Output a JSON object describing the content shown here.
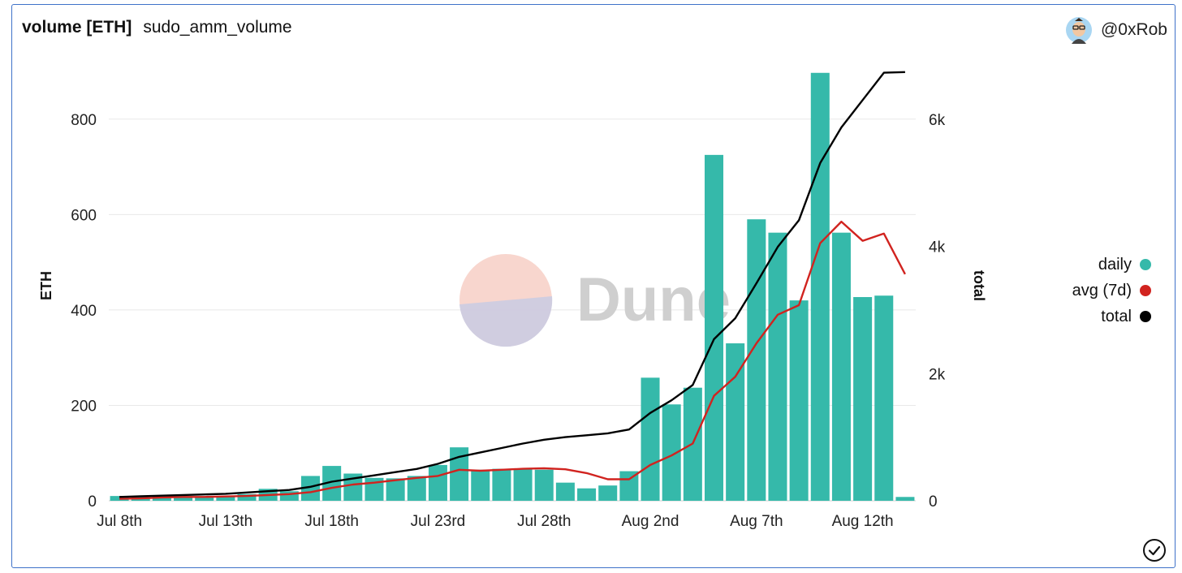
{
  "header": {
    "title": "volume [ETH]",
    "subtitle": "sudo_amm_volume",
    "author": "@0xRob"
  },
  "watermark": "Dune",
  "legend": [
    {
      "label": "daily",
      "color": "#35b9aa"
    },
    {
      "label": "avg (7d)",
      "color": "#d1231f"
    },
    {
      "label": "total",
      "color": "#000000"
    }
  ],
  "icons": {
    "avatar": "avatar-icon",
    "status": "checkmark-circle-icon"
  },
  "chart_data": {
    "type": "bar",
    "title": "volume [ETH]",
    "ylabel": "ETH",
    "y2label": "total",
    "ylim": [
      0,
      900
    ],
    "y2lim": [
      0,
      6750
    ],
    "yticks": [
      0,
      200,
      400,
      600,
      800
    ],
    "yticks_labels": [
      "0",
      "200",
      "400",
      "600",
      "800"
    ],
    "y2ticks": [
      0,
      2000,
      4000,
      6000
    ],
    "y2ticks_labels": [
      "0",
      "2k",
      "4k",
      "6k"
    ],
    "grid": true,
    "legend_position": "right",
    "x": [
      "Jul 8",
      "Jul 9",
      "Jul 10",
      "Jul 11",
      "Jul 12",
      "Jul 13",
      "Jul 14",
      "Jul 15",
      "Jul 16",
      "Jul 17",
      "Jul 18",
      "Jul 19",
      "Jul 20",
      "Jul 21",
      "Jul 22",
      "Jul 23",
      "Jul 24",
      "Jul 25",
      "Jul 26",
      "Jul 27",
      "Jul 28",
      "Jul 29",
      "Jul 30",
      "Jul 31",
      "Aug 1",
      "Aug 2",
      "Aug 3",
      "Aug 4",
      "Aug 5",
      "Aug 6",
      "Aug 7",
      "Aug 8",
      "Aug 9",
      "Aug 10",
      "Aug 11",
      "Aug 12",
      "Aug 13",
      "Aug 14"
    ],
    "xtick_labels": [
      {
        "index": 0,
        "label": "Jul 8th"
      },
      {
        "index": 5,
        "label": "Jul 13th"
      },
      {
        "index": 10,
        "label": "Jul 18th"
      },
      {
        "index": 15,
        "label": "Jul 23rd"
      },
      {
        "index": 20,
        "label": "Jul 28th"
      },
      {
        "index": 25,
        "label": "Aug 2nd"
      },
      {
        "index": 30,
        "label": "Aug 7th"
      },
      {
        "index": 35,
        "label": "Aug 12th"
      }
    ],
    "series": [
      {
        "name": "daily",
        "type": "bar",
        "axis": "left",
        "color": "#35b9aa",
        "values": [
          10,
          8,
          9,
          10,
          8,
          10,
          14,
          25,
          20,
          52,
          73,
          57,
          48,
          47,
          52,
          75,
          112,
          65,
          67,
          67,
          65,
          38,
          26,
          32,
          62,
          258,
          202,
          237,
          725,
          330,
          590,
          562,
          420,
          897,
          562,
          427,
          430,
          8
        ]
      },
      {
        "name": "avg (7d)",
        "type": "line",
        "axis": "left",
        "color": "#d1231f",
        "values": [
          4,
          5,
          7,
          8,
          8,
          9,
          10,
          12,
          14,
          18,
          27,
          34,
          38,
          43,
          48,
          52,
          65,
          63,
          65,
          67,
          68,
          66,
          58,
          45,
          45,
          75,
          95,
          120,
          220,
          260,
          330,
          390,
          410,
          540,
          585,
          545,
          560,
          475
        ]
      },
      {
        "name": "total",
        "type": "line",
        "axis": "right",
        "color": "#000000",
        "values": [
          60,
          70,
          80,
          90,
          100,
          110,
          130,
          150,
          170,
          220,
          300,
          350,
          400,
          450,
          500,
          580,
          690,
          760,
          830,
          900,
          960,
          1000,
          1030,
          1060,
          1120,
          1380,
          1580,
          1820,
          2540,
          2870,
          3420,
          3990,
          4410,
          5310,
          5870,
          6300,
          6730,
          6740
        ]
      }
    ]
  }
}
